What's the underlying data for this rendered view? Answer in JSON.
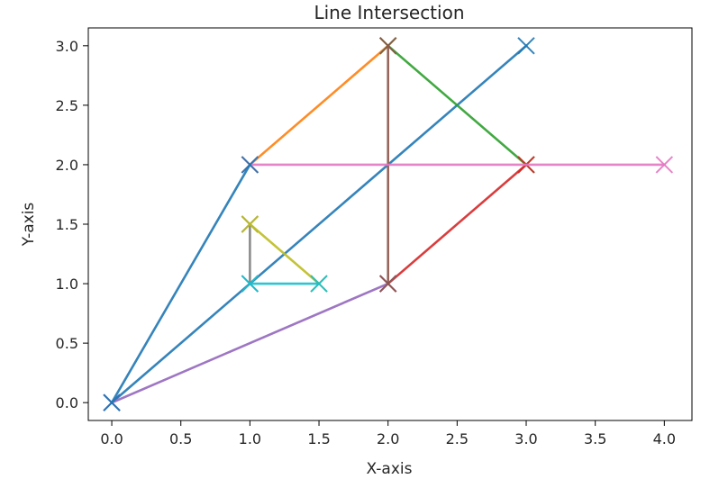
{
  "chart_data": {
    "type": "line",
    "title": "Line Intersection",
    "xlabel": "X-axis",
    "ylabel": "Y-axis",
    "xlim": [
      -0.17,
      4.2
    ],
    "ylim": [
      -0.15,
      3.15
    ],
    "x_ticks": [
      0.0,
      0.5,
      1.0,
      1.5,
      2.0,
      2.5,
      3.0,
      3.5,
      4.0
    ],
    "x_tick_labels": [
      "0.0",
      "0.5",
      "1.0",
      "1.5",
      "2.0",
      "2.5",
      "3.0",
      "3.5",
      "4.0"
    ],
    "y_ticks": [
      0.0,
      0.5,
      1.0,
      1.5,
      2.0,
      2.5,
      3.0
    ],
    "y_tick_labels": [
      "0.0",
      "0.5",
      "1.0",
      "1.5",
      "2.0",
      "2.5",
      "3.0"
    ],
    "grid": false,
    "marker": "x",
    "series": [
      {
        "color": "#1f77b4",
        "points": [
          [
            0,
            0
          ],
          [
            3,
            3
          ]
        ]
      },
      {
        "color": "#ff7f0e",
        "points": [
          [
            1,
            2
          ],
          [
            2,
            3
          ]
        ]
      },
      {
        "color": "#2ca02c",
        "points": [
          [
            2,
            3
          ],
          [
            3,
            2
          ]
        ]
      },
      {
        "color": "#d62728",
        "points": [
          [
            2,
            1
          ],
          [
            3,
            2
          ]
        ]
      },
      {
        "color": "#9467bd",
        "points": [
          [
            0,
            0
          ],
          [
            2,
            1
          ]
        ]
      },
      {
        "color": "#8c564b",
        "points": [
          [
            2,
            1
          ],
          [
            2,
            3
          ]
        ]
      },
      {
        "color": "#e377c2",
        "points": [
          [
            1,
            2
          ],
          [
            4,
            2
          ]
        ]
      },
      {
        "color": "#7f7f7f",
        "points": [
          [
            1,
            1
          ],
          [
            1,
            1.5
          ]
        ]
      },
      {
        "color": "#bcbd22",
        "points": [
          [
            1,
            1.5
          ],
          [
            1.5,
            1
          ]
        ]
      },
      {
        "color": "#17becf",
        "points": [
          [
            1,
            1
          ],
          [
            1.5,
            1
          ]
        ]
      },
      {
        "color": "#1f77b4",
        "points": [
          [
            0,
            0
          ],
          [
            1,
            2
          ]
        ]
      }
    ]
  }
}
